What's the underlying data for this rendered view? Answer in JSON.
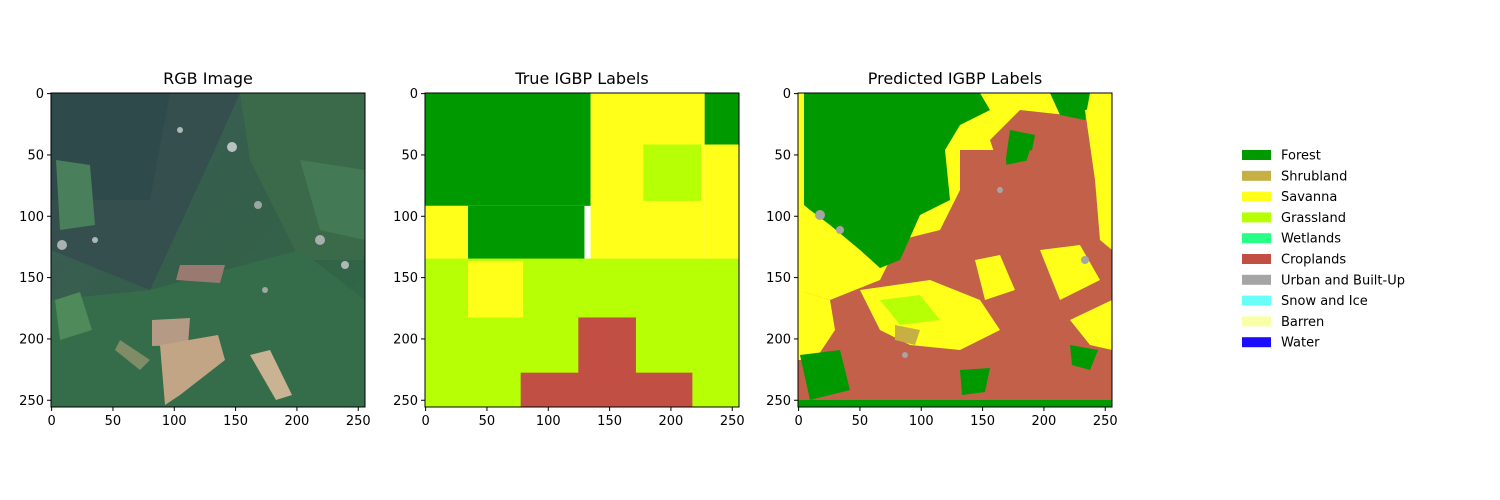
{
  "panels": [
    {
      "title": "RGB Image",
      "kind": "rgb"
    },
    {
      "title": "True IGBP Labels",
      "kind": "true"
    },
    {
      "title": "Predicted IGBP Labels",
      "kind": "pred"
    }
  ],
  "axes": {
    "xticks": [
      "0",
      "50",
      "100",
      "150",
      "200",
      "250"
    ],
    "yticks": [
      "0",
      "50",
      "100",
      "150",
      "200",
      "250"
    ],
    "range": [
      0,
      256
    ]
  },
  "legend": [
    {
      "label": "Forest",
      "color": "#009900"
    },
    {
      "label": "Shrubland",
      "color": "#c6b044"
    },
    {
      "label": "Savanna",
      "color": "#ffff1a"
    },
    {
      "label": "Grassland",
      "color": "#b6ff05"
    },
    {
      "label": "Wetlands",
      "color": "#27ff87"
    },
    {
      "label": "Croplands",
      "color": "#c24f44"
    },
    {
      "label": "Urban and Built-Up",
      "color": "#a5a5a5"
    },
    {
      "label": "Snow and Ice",
      "color": "#69fff8"
    },
    {
      "label": "Barren",
      "color": "#f9ffa4"
    },
    {
      "label": "Water",
      "color": "#1c0dff"
    }
  ],
  "chart_data": {
    "type": "heatmap",
    "xlim": [
      0,
      256
    ],
    "ylim": [
      256,
      0
    ],
    "true_labels_regions": [
      {
        "label": "Forest",
        "x": [
          0,
          135
        ],
        "y": [
          0,
          92
        ]
      },
      {
        "label": "Forest",
        "x": [
          35,
          130
        ],
        "y": [
          92,
          137
        ]
      },
      {
        "label": "Savanna",
        "x": [
          0,
          35
        ],
        "y": [
          92,
          137
        ]
      },
      {
        "label": "Savanna",
        "x": [
          135,
          228
        ],
        "y": [
          0,
          135
        ]
      },
      {
        "label": "Forest",
        "x": [
          228,
          256
        ],
        "y": [
          0,
          42
        ]
      },
      {
        "label": "Savanna",
        "x": [
          228,
          256
        ],
        "y": [
          42,
          135
        ]
      },
      {
        "label": "Grassland",
        "x": [
          178,
          225
        ],
        "y": [
          42,
          88
        ]
      },
      {
        "label": "Grassland",
        "x": [
          0,
          256
        ],
        "y": [
          135,
          256
        ]
      },
      {
        "label": "Savanna",
        "x": [
          35,
          80
        ],
        "y": [
          137,
          183
        ]
      },
      {
        "label": "Croplands",
        "x": [
          125,
          172
        ],
        "y": [
          183,
          256
        ]
      },
      {
        "label": "Croplands",
        "x": [
          78,
          218
        ],
        "y": [
          228,
          256
        ]
      }
    ]
  }
}
